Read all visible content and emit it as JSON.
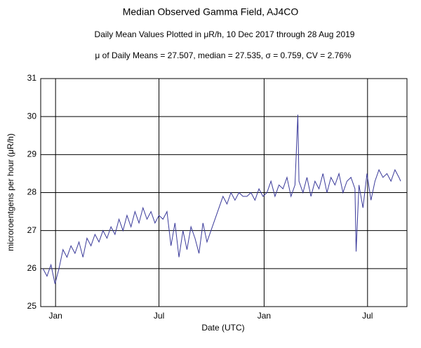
{
  "chart_data": {
    "type": "line",
    "title": "Median Observed Gamma Field, AJ4CO",
    "subtitle": "Daily Mean Values Plotted in μR/h, 10 Dec 2017 through 28 Aug 2019",
    "annotation": "μ of Daily Means = 27.507,   median = 27.535,   σ = 0.759,   CV = 2.76%",
    "x_label": "Date (UTC)",
    "y_label": "microroentgens per hour (μR/h)",
    "color": "#3a3a9a",
    "grid": true,
    "xlim": [
      "2017-12-06",
      "2019-09-08"
    ],
    "xticks": [
      {
        "value": "2018-01-01",
        "label": "Jan"
      },
      {
        "value": "2018-07-01",
        "label": "Jul"
      },
      {
        "value": "2019-01-01",
        "label": "Jan"
      },
      {
        "value": "2019-07-01",
        "label": "Jul"
      }
    ],
    "ylim": [
      25,
      31
    ],
    "yticks": [
      25,
      26,
      27,
      28,
      29,
      30,
      31
    ],
    "x": [
      "2017-12-10",
      "2017-12-17",
      "2017-12-24",
      "2017-12-31",
      "2018-01-07",
      "2018-01-14",
      "2018-01-21",
      "2018-01-28",
      "2018-02-04",
      "2018-02-11",
      "2018-02-18",
      "2018-02-25",
      "2018-03-04",
      "2018-03-11",
      "2018-03-18",
      "2018-03-25",
      "2018-04-01",
      "2018-04-08",
      "2018-04-15",
      "2018-04-22",
      "2018-04-29",
      "2018-05-06",
      "2018-05-13",
      "2018-05-20",
      "2018-05-27",
      "2018-06-03",
      "2018-06-10",
      "2018-06-17",
      "2018-06-24",
      "2018-07-01",
      "2018-07-08",
      "2018-07-15",
      "2018-07-22",
      "2018-07-29",
      "2018-08-05",
      "2018-08-12",
      "2018-08-19",
      "2018-08-26",
      "2018-09-02",
      "2018-09-09",
      "2018-09-16",
      "2018-09-23",
      "2018-09-30",
      "2018-10-07",
      "2018-10-14",
      "2018-10-21",
      "2018-10-28",
      "2018-11-04",
      "2018-11-11",
      "2018-11-18",
      "2018-11-25",
      "2018-12-02",
      "2018-12-09",
      "2018-12-16",
      "2018-12-23",
      "2018-12-30",
      "2019-01-06",
      "2019-01-13",
      "2019-01-20",
      "2019-01-27",
      "2019-02-03",
      "2019-02-10",
      "2019-02-17",
      "2019-02-24",
      "2019-03-01",
      "2019-03-03",
      "2019-03-10",
      "2019-03-17",
      "2019-03-24",
      "2019-03-31",
      "2019-04-07",
      "2019-04-14",
      "2019-04-21",
      "2019-04-28",
      "2019-05-05",
      "2019-05-12",
      "2019-05-19",
      "2019-05-26",
      "2019-06-02",
      "2019-06-09",
      "2019-06-11",
      "2019-06-16",
      "2019-06-23",
      "2019-06-30",
      "2019-07-07",
      "2019-07-14",
      "2019-07-21",
      "2019-07-28",
      "2019-08-04",
      "2019-08-11",
      "2019-08-18",
      "2019-08-25",
      "2019-08-28"
    ],
    "values": [
      26.0,
      25.8,
      26.1,
      25.6,
      26.0,
      26.5,
      26.3,
      26.6,
      26.4,
      26.7,
      26.3,
      26.8,
      26.6,
      26.9,
      26.7,
      27.0,
      26.8,
      27.1,
      26.9,
      27.3,
      27.0,
      27.4,
      27.1,
      27.5,
      27.2,
      27.6,
      27.3,
      27.5,
      27.2,
      27.4,
      27.3,
      27.5,
      26.6,
      27.2,
      26.3,
      27.0,
      26.5,
      27.1,
      26.8,
      26.4,
      27.2,
      26.7,
      27.0,
      27.3,
      27.6,
      27.9,
      27.7,
      28.0,
      27.8,
      28.0,
      27.9,
      27.9,
      28.0,
      27.8,
      28.1,
      27.9,
      28.0,
      28.3,
      27.9,
      28.2,
      28.1,
      28.4,
      27.9,
      28.2,
      30.05,
      28.3,
      28.0,
      28.4,
      27.9,
      28.3,
      28.1,
      28.5,
      28.0,
      28.4,
      28.2,
      28.5,
      28.0,
      28.3,
      28.4,
      28.1,
      26.45,
      28.2,
      27.6,
      28.5,
      27.8,
      28.3,
      28.6,
      28.4,
      28.5,
      28.3,
      28.6,
      28.4,
      28.3
    ]
  }
}
